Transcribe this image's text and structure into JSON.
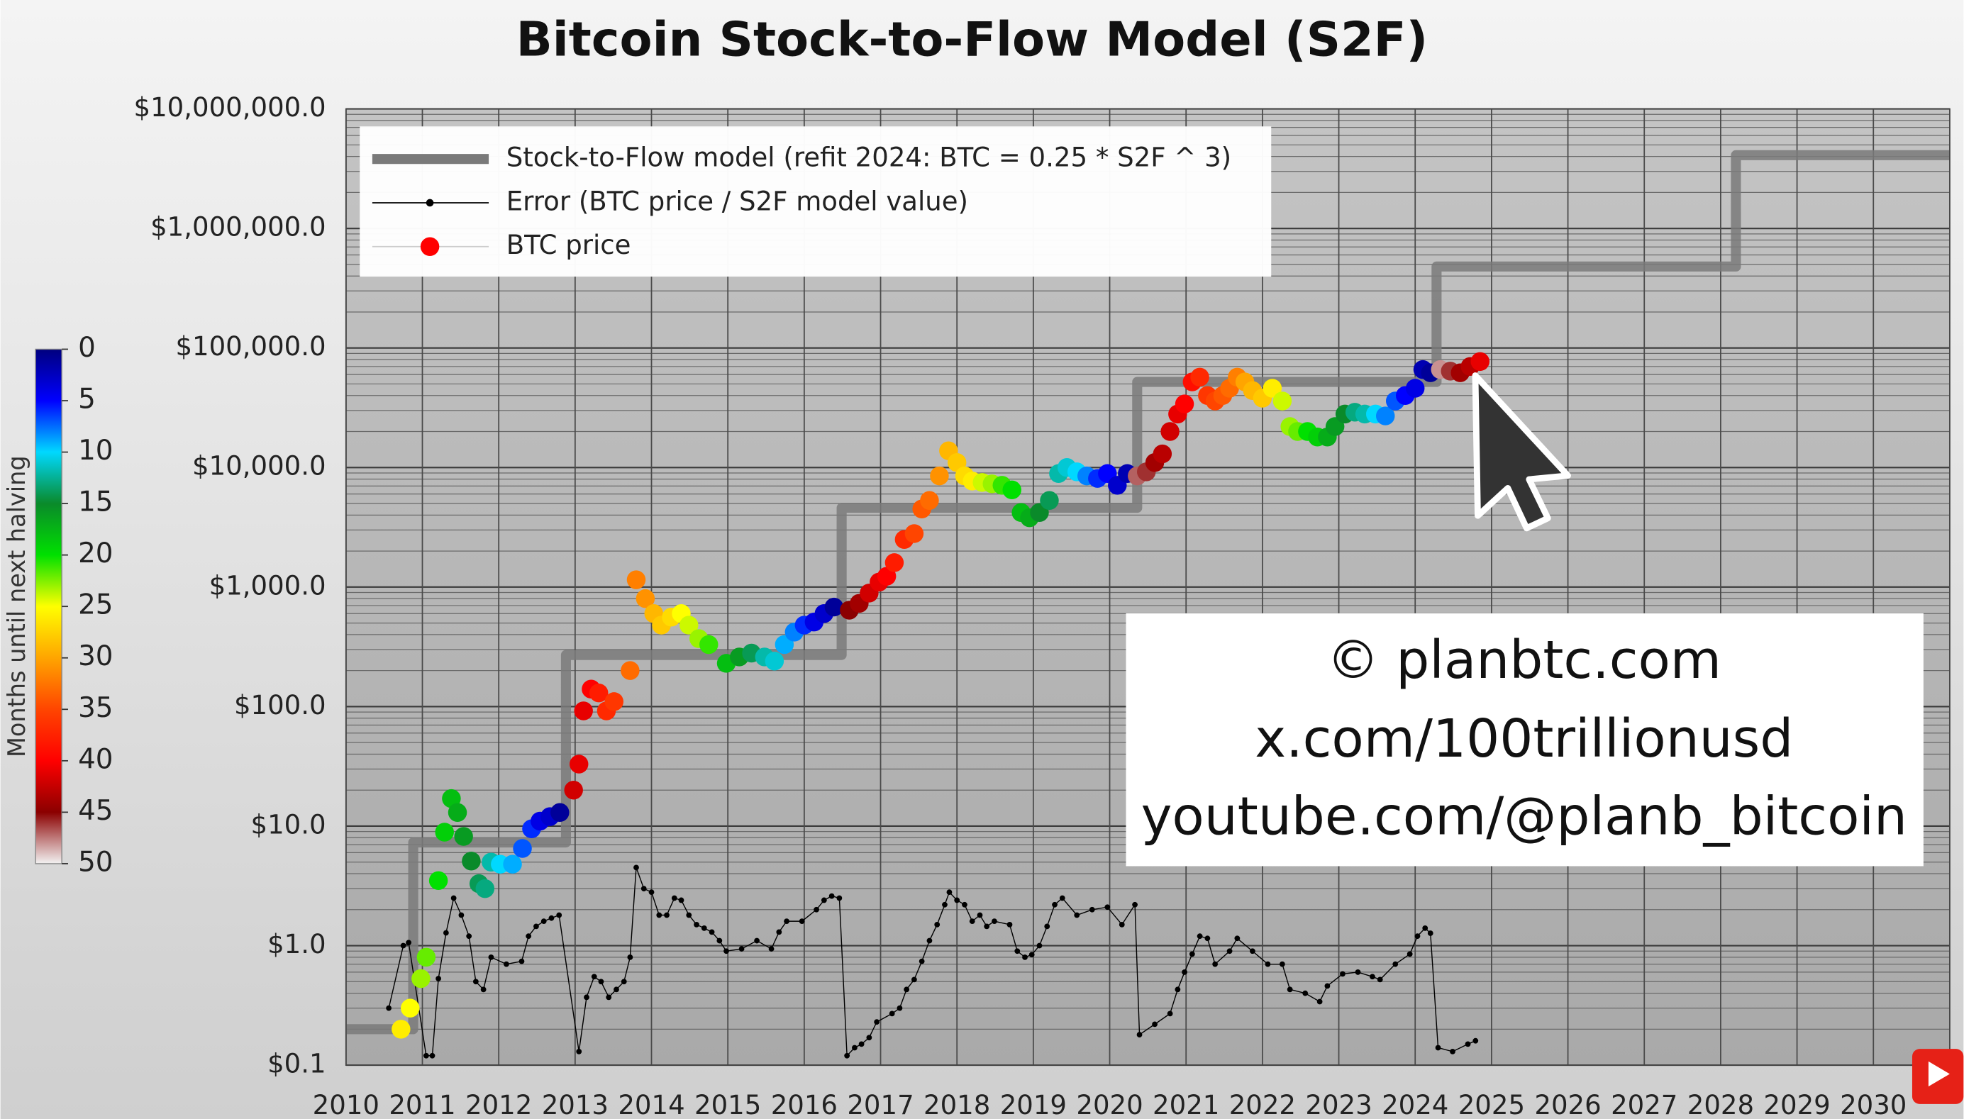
{
  "chart_data": {
    "type": "scatter",
    "title": "Bitcoin Stock-to-Flow Model (S2F)",
    "xlim": [
      2010,
      2031
    ],
    "xticks": [
      2010,
      2011,
      2012,
      2013,
      2014,
      2015,
      2016,
      2017,
      2018,
      2019,
      2020,
      2021,
      2022,
      2023,
      2024,
      2025,
      2026,
      2027,
      2028,
      2029,
      2030
    ],
    "ylim": [
      0.1,
      10000000
    ],
    "yticks": [
      {
        "value": 0.1,
        "label": "$0.1"
      },
      {
        "value": 1,
        "label": "$1.0"
      },
      {
        "value": 10,
        "label": "$10.0"
      },
      {
        "value": 100,
        "label": "$100.0"
      },
      {
        "value": 1000,
        "label": "$1,000.0"
      },
      {
        "value": 10000,
        "label": "$10,000.0"
      },
      {
        "value": 100000,
        "label": "$100,000.0"
      },
      {
        "value": 1000000,
        "label": "$1,000,000.0"
      },
      {
        "value": 10000000,
        "label": "$10,000,000.0"
      }
    ],
    "log_y": true,
    "grid": true,
    "minor_grid": true,
    "legend": "upper left",
    "series": [
      {
        "name": "Stock-to-Flow model (refit 2024:  BTC = 0.25 * S2F ^ 3)",
        "type": "line",
        "color": "#7a7a7a",
        "x": [
          2010,
          2010.88,
          2010.88,
          2012.88,
          2012.88,
          2016.49,
          2016.49,
          2020.36,
          2020.36,
          2024.28,
          2024.28,
          2028.2,
          2028.2,
          2031
        ],
        "values": [
          0.2,
          0.2,
          7.3,
          7.3,
          270,
          270,
          4600,
          4600,
          52000,
          52000,
          480000,
          480000,
          4100000,
          4100000
        ]
      },
      {
        "name": "Error (BTC price / S2F model value)",
        "type": "dotline",
        "color": "#000000",
        "x": [
          2010.56,
          2010.75,
          2010.82,
          2011.05,
          2011.13,
          2011.21,
          2011.31,
          2011.41,
          2011.51,
          2011.61,
          2011.7,
          2011.8,
          2011.9,
          2012.1,
          2012.3,
          2012.39,
          2012.49,
          2012.59,
          2012.69,
          2012.79,
          2013.05,
          2013.15,
          2013.25,
          2013.34,
          2013.44,
          2013.54,
          2013.64,
          2013.72,
          2013.8,
          2013.9,
          2014.0,
          2014.1,
          2014.2,
          2014.3,
          2014.39,
          2014.49,
          2014.59,
          2014.69,
          2014.79,
          2014.89,
          2014.98,
          2015.18,
          2015.38,
          2015.57,
          2015.67,
          2015.77,
          2015.97,
          2016.16,
          2016.26,
          2016.36,
          2016.46,
          2016.56,
          2016.66,
          2016.75,
          2016.85,
          2016.95,
          2017.15,
          2017.25,
          2017.34,
          2017.44,
          2017.54,
          2017.64,
          2017.74,
          2017.84,
          2017.9,
          2018.0,
          2018.1,
          2018.2,
          2018.3,
          2018.39,
          2018.49,
          2018.69,
          2018.79,
          2018.89,
          2018.98,
          2019.08,
          2019.18,
          2019.28,
          2019.38,
          2019.57,
          2019.77,
          2019.97,
          2020.16,
          2020.33,
          2020.39,
          2020.59,
          2020.79,
          2020.89,
          2020.98,
          2021.08,
          2021.18,
          2021.28,
          2021.38,
          2021.57,
          2021.67,
          2021.87,
          2022.07,
          2022.26,
          2022.36,
          2022.56,
          2022.75,
          2022.85,
          2023.05,
          2023.25,
          2023.44,
          2023.54,
          2023.74,
          2023.93,
          2024.03,
          2024.13,
          2024.2,
          2024.3,
          2024.49,
          2024.69,
          2024.79
        ],
        "values": [
          0.3,
          1.0,
          1.06,
          0.12,
          0.12,
          0.53,
          1.28,
          2.5,
          1.8,
          1.2,
          0.5,
          0.43,
          0.8,
          0.7,
          0.74,
          1.2,
          1.45,
          1.6,
          1.7,
          1.8,
          0.13,
          0.37,
          0.55,
          0.5,
          0.37,
          0.43,
          0.5,
          0.8,
          4.5,
          3,
          2.8,
          1.8,
          1.8,
          2.5,
          2.4,
          1.8,
          1.5,
          1.4,
          1.3,
          1.1,
          0.9,
          0.94,
          1.1,
          0.94,
          1.3,
          1.6,
          1.6,
          2,
          2.4,
          2.6,
          2.5,
          0.12,
          0.14,
          0.15,
          0.17,
          0.23,
          0.27,
          0.3,
          0.43,
          0.52,
          0.74,
          1.1,
          1.5,
          2.2,
          2.8,
          2.4,
          2.2,
          1.6,
          1.8,
          1.45,
          1.6,
          1.5,
          0.9,
          0.8,
          0.84,
          1,
          1.45,
          2.2,
          2.5,
          1.8,
          2.0,
          2.1,
          1.5,
          2.2,
          0.18,
          0.22,
          0.27,
          0.43,
          0.6,
          0.85,
          1.2,
          1.15,
          0.7,
          0.9,
          1.15,
          0.9,
          0.7,
          0.7,
          0.43,
          0.4,
          0.34,
          0.46,
          0.58,
          0.6,
          0.55,
          0.52,
          0.7,
          0.85,
          1.2,
          1.4,
          1.27,
          0.14,
          0.13,
          0.15,
          0.16
        ]
      },
      {
        "name": "BTC price",
        "type": "scatter",
        "color": "#ff0000",
        "x": [
          2010.72,
          2010.84,
          2010.98,
          2011.05,
          2011.21,
          2011.29,
          2011.38,
          2011.46,
          2011.54,
          2011.64,
          2011.74,
          2011.82,
          2011.9,
          2012.02,
          2012.18,
          2012.31,
          2012.43,
          2012.54,
          2012.67,
          2012.8,
          2012.98,
          2013.05,
          2013.11,
          2013.21,
          2013.31,
          2013.41,
          2013.51,
          2013.72,
          2013.8,
          2013.92,
          2014.03,
          2014.13,
          2014.26,
          2014.39,
          2014.49,
          2014.62,
          2014.75,
          2014.98,
          2015.15,
          2015.31,
          2015.48,
          2015.61,
          2015.74,
          2015.87,
          2016.0,
          2016.13,
          2016.26,
          2016.39,
          2016.59,
          2016.72,
          2016.85,
          2016.98,
          2017.08,
          2017.18,
          2017.31,
          2017.44,
          2017.54,
          2017.64,
          2017.77,
          2017.89,
          2018.0,
          2018.1,
          2018.2,
          2018.33,
          2018.46,
          2018.59,
          2018.72,
          2018.84,
          2018.95,
          2019.08,
          2019.21,
          2019.33,
          2019.44,
          2019.57,
          2019.7,
          2019.84,
          2019.97,
          2020.1,
          2020.23,
          2020.36,
          2020.48,
          2020.59,
          2020.69,
          2020.79,
          2020.89,
          2020.98,
          2021.08,
          2021.18,
          2021.28,
          2021.38,
          2021.48,
          2021.57,
          2021.67,
          2021.77,
          2021.87,
          2022.0,
          2022.13,
          2022.26,
          2022.36,
          2022.46,
          2022.59,
          2022.72,
          2022.85,
          2022.95,
          2023.08,
          2023.21,
          2023.34,
          2023.48,
          2023.61,
          2023.74,
          2023.87,
          2024.0,
          2024.1,
          2024.2,
          2024.33,
          2024.46,
          2024.59,
          2024.72,
          2024.85
        ],
        "values": [
          0.2,
          0.3,
          0.53,
          0.8,
          3.5,
          8.9,
          17,
          13,
          8.2,
          5.1,
          3.3,
          3,
          5,
          4.8,
          4.8,
          6.5,
          9.5,
          11,
          12,
          13,
          20,
          33,
          92,
          140,
          130,
          92,
          110,
          200,
          1150,
          800,
          600,
          480,
          560,
          600,
          480,
          370,
          330,
          230,
          260,
          280,
          260,
          240,
          330,
          420,
          480,
          510,
          600,
          680,
          640,
          730,
          890,
          1100,
          1230,
          1600,
          2500,
          2800,
          4500,
          5300,
          8500,
          13800,
          11000,
          8500,
          7700,
          7500,
          7300,
          7100,
          6500,
          4200,
          3800,
          4200,
          5300,
          8900,
          10000,
          9200,
          8500,
          8100,
          8900,
          7100,
          8900,
          8500,
          9200,
          11000,
          13000,
          20000,
          28000,
          34000,
          52000,
          57000,
          40000,
          36000,
          40000,
          46000,
          57000,
          52000,
          44000,
          38000,
          46000,
          36000,
          22000,
          20000,
          20000,
          18000,
          18000,
          22000,
          28000,
          29000,
          28000,
          28000,
          27000,
          36000,
          40000,
          46000,
          66000,
          62000,
          66000,
          64000,
          62000,
          70000,
          77000
        ],
        "color_values": [
          26,
          25,
          23,
          22,
          20,
          19,
          18,
          17,
          16,
          15,
          14,
          13,
          12,
          10,
          9,
          7,
          6,
          4,
          3,
          1,
          42,
          41,
          41,
          40,
          38,
          37,
          36,
          33,
          32,
          31,
          29,
          28,
          27,
          25,
          24,
          23,
          21,
          18,
          16,
          14,
          12,
          11,
          9,
          8,
          6,
          4,
          3,
          1,
          45,
          44,
          42,
          41,
          40,
          38,
          37,
          35,
          34,
          33,
          31,
          29,
          28,
          27,
          26,
          24,
          23,
          21,
          20,
          18,
          17,
          15,
          14,
          12,
          11,
          10,
          8,
          6,
          5,
          3,
          2,
          47,
          46,
          44,
          43,
          42,
          41,
          40,
          39,
          37,
          36,
          35,
          34,
          33,
          32,
          30,
          29,
          28,
          26,
          24,
          23,
          22,
          20,
          19,
          17,
          16,
          15,
          13,
          12,
          10,
          8,
          7,
          5,
          4,
          2,
          1,
          48,
          46,
          44,
          43,
          41
        ]
      }
    ],
    "colorbar": {
      "label": "Months until next halving",
      "lim": [
        0,
        50
      ],
      "ticks": [
        0,
        5,
        10,
        15,
        20,
        25,
        30,
        35,
        40,
        45,
        50
      ],
      "colormap": [
        "#00007f",
        "#0000ff",
        "#00d8ff",
        "#0a8a2a",
        "#00e000",
        "#ffff00",
        "#ffa500",
        "#ff4500",
        "#ff0000",
        "#8b0000",
        "#f2f2f2"
      ]
    },
    "annotations": [
      "© planbtc.com",
      "x.com/100trillionusd",
      "youtube.com/@planb_bitcoin"
    ]
  }
}
